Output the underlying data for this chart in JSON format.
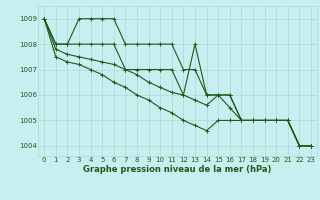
{
  "bg_color": "#c8eef0",
  "grid_color": "#b0d8d8",
  "line_color": "#1a5c1a",
  "series": [
    [
      1009,
      1008,
      1008,
      1009,
      1009,
      1009,
      1009,
      1008,
      1008,
      1008,
      1008,
      1008,
      1007,
      1007,
      1006,
      1006,
      1006,
      1005,
      1005,
      1005,
      1005,
      1005,
      1004,
      1004
    ],
    [
      1009,
      1008,
      1008,
      1008,
      1008,
      1008,
      1008,
      1007,
      1007,
      1007,
      1007,
      1007,
      1006,
      1008,
      1006,
      1006,
      1006,
      1005,
      1005,
      1005,
      1005,
      1005,
      1004,
      1004
    ],
    [
      1009,
      1007.8,
      1007.6,
      1007.5,
      1007.4,
      1007.3,
      1007.2,
      1007.0,
      1006.8,
      1006.5,
      1006.3,
      1006.1,
      1006.0,
      1005.8,
      1005.6,
      1006.0,
      1005.5,
      1005.0,
      1005.0,
      1005.0,
      1005.0,
      1005.0,
      1004.0,
      1004.0
    ],
    [
      1009,
      1007.5,
      1007.3,
      1007.2,
      1007.0,
      1006.8,
      1006.5,
      1006.3,
      1006.0,
      1005.8,
      1005.5,
      1005.3,
      1005.0,
      1004.8,
      1004.6,
      1005.0,
      1005.0,
      1005.0,
      1005.0,
      1005.0,
      1005.0,
      1005.0,
      1004.0,
      1004.0
    ]
  ],
  "yticks": [
    1004,
    1005,
    1006,
    1007,
    1008,
    1009
  ],
  "xticks": [
    0,
    1,
    2,
    3,
    4,
    5,
    6,
    7,
    8,
    9,
    10,
    11,
    12,
    13,
    14,
    15,
    16,
    17,
    18,
    19,
    20,
    21,
    22,
    23
  ],
  "xlabel": "Graphe pression niveau de la mer (hPa)",
  "marker": "+",
  "markersize": 3,
  "linewidth": 0.8,
  "tick_fontsize": 5,
  "label_fontsize": 6
}
